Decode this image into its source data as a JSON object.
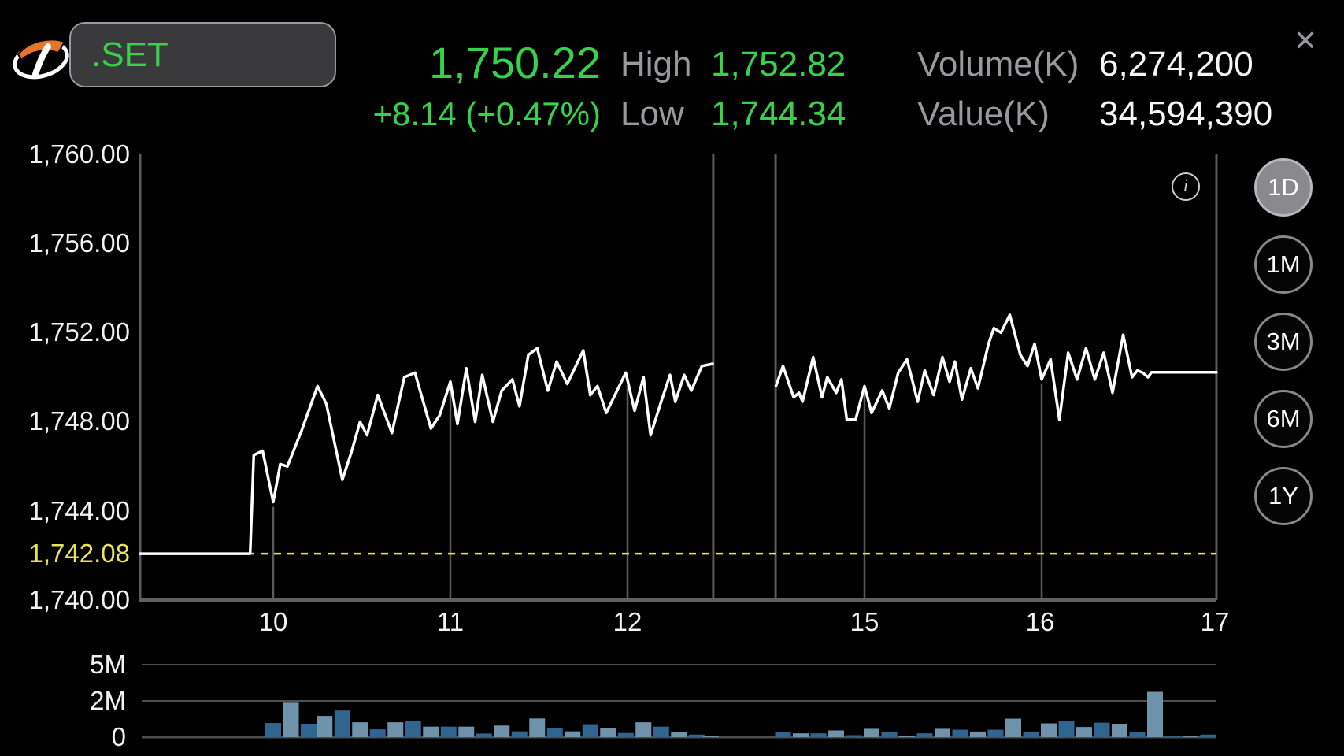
{
  "header": {
    "symbol": ".SET",
    "price": "1,750.22",
    "change": "+8.14 (+0.47%)",
    "high_label": "High",
    "high_value": "1,752.82",
    "low_label": "Low",
    "low_value": "1,744.34",
    "volume_label": "Volume(K)",
    "volume_value": "6,274,200",
    "value_label": "Value(K)",
    "value_value": "34,594,390",
    "close_glyph": "✕"
  },
  "chart": {
    "y_ticks": [
      "1,760.00",
      "1,756.00",
      "1,752.00",
      "1,748.00",
      "1,744.00",
      "1,740.00"
    ],
    "prev_close_label": "1,742.08",
    "x_ticks": [
      "10",
      "11",
      "12",
      "15",
      "16",
      "17"
    ],
    "volume_ticks": [
      "5M",
      "2M",
      "0"
    ],
    "range_buttons": [
      {
        "label": "1D",
        "active": true
      },
      {
        "label": "1M",
        "active": false
      },
      {
        "label": "3M",
        "active": false
      },
      {
        "label": "6M",
        "active": false
      },
      {
        "label": "1Y",
        "active": false
      }
    ],
    "info_glyph": "i"
  },
  "colors": {
    "up_green": "#35d24a",
    "label_gray": "#98989d",
    "value_white": "#f5f5f7",
    "prev_close_yellow": "#e8e455",
    "grid_gray": "#5a5a5c",
    "volume_grid_gray": "#4d4d4f",
    "price_line": "#ffffff",
    "bar_dark": "#2f658e",
    "bar_light": "#6e93ab",
    "logo_orange": "#e8742c"
  },
  "chart_data": {
    "type": "line+bar",
    "title": ".SET intraday price with volume",
    "x_axis": {
      "unit": "hour_of_day",
      "ticks": [
        10,
        11,
        12,
        15,
        16,
        17
      ],
      "sessions": [
        [
          9.25,
          12.484
        ],
        [
          14.498,
          17.0
        ]
      ]
    },
    "y_axis": {
      "min": 1740,
      "max": 1760,
      "tick_step": 4
    },
    "prev_close": 1742.08,
    "high": 1752.82,
    "low": 1744.34,
    "last": 1750.22,
    "price_series": {
      "morning": [
        [
          9.25,
          1742.08
        ],
        [
          9.87,
          1742.08
        ],
        [
          9.89,
          1746.5
        ],
        [
          9.94,
          1746.7
        ],
        [
          10.0,
          1744.4
        ],
        [
          10.04,
          1746.1
        ],
        [
          10.08,
          1746.0
        ],
        [
          10.16,
          1747.6
        ],
        [
          10.25,
          1749.6
        ],
        [
          10.3,
          1748.8
        ],
        [
          10.39,
          1745.4
        ],
        [
          10.44,
          1746.6
        ],
        [
          10.49,
          1748.0
        ],
        [
          10.53,
          1747.4
        ],
        [
          10.59,
          1749.2
        ],
        [
          10.67,
          1747.5
        ],
        [
          10.74,
          1750.0
        ],
        [
          10.8,
          1750.2
        ],
        [
          10.89,
          1747.7
        ],
        [
          10.94,
          1748.3
        ],
        [
          11.0,
          1749.8
        ],
        [
          11.04,
          1747.9
        ],
        [
          11.09,
          1750.4
        ],
        [
          11.14,
          1748.0
        ],
        [
          11.18,
          1750.1
        ],
        [
          11.24,
          1748.0
        ],
        [
          11.29,
          1749.4
        ],
        [
          11.35,
          1749.9
        ],
        [
          11.39,
          1748.7
        ],
        [
          11.44,
          1751.0
        ],
        [
          11.49,
          1751.3
        ],
        [
          11.55,
          1749.4
        ],
        [
          11.6,
          1750.7
        ],
        [
          11.66,
          1749.7
        ],
        [
          11.75,
          1751.2
        ],
        [
          11.79,
          1749.2
        ],
        [
          11.83,
          1749.6
        ],
        [
          11.88,
          1748.4
        ],
        [
          11.99,
          1750.2
        ],
        [
          12.04,
          1748.5
        ],
        [
          12.09,
          1750.0
        ],
        [
          12.13,
          1747.4
        ],
        [
          12.19,
          1748.9
        ],
        [
          12.24,
          1750.1
        ],
        [
          12.27,
          1748.9
        ],
        [
          12.32,
          1750.1
        ],
        [
          12.36,
          1749.4
        ],
        [
          12.42,
          1750.5
        ],
        [
          12.48,
          1750.6
        ]
      ],
      "afternoon": [
        [
          14.5,
          1749.6
        ],
        [
          14.54,
          1750.5
        ],
        [
          14.6,
          1749.1
        ],
        [
          14.63,
          1749.3
        ],
        [
          14.65,
          1748.9
        ],
        [
          14.71,
          1750.9
        ],
        [
          14.76,
          1749.1
        ],
        [
          14.79,
          1750.0
        ],
        [
          14.84,
          1749.3
        ],
        [
          14.87,
          1749.9
        ],
        [
          14.9,
          1748.1
        ],
        [
          14.95,
          1748.1
        ],
        [
          15.0,
          1749.6
        ],
        [
          15.04,
          1748.4
        ],
        [
          15.1,
          1749.4
        ],
        [
          15.14,
          1748.6
        ],
        [
          15.19,
          1750.2
        ],
        [
          15.24,
          1750.8
        ],
        [
          15.3,
          1748.9
        ],
        [
          15.34,
          1750.3
        ],
        [
          15.39,
          1749.2
        ],
        [
          15.44,
          1750.9
        ],
        [
          15.48,
          1749.8
        ],
        [
          15.51,
          1750.7
        ],
        [
          15.55,
          1749.0
        ],
        [
          15.6,
          1750.4
        ],
        [
          15.64,
          1749.5
        ],
        [
          15.7,
          1751.5
        ],
        [
          15.73,
          1752.2
        ],
        [
          15.77,
          1752.0
        ],
        [
          15.82,
          1752.8
        ],
        [
          15.88,
          1751.0
        ],
        [
          15.92,
          1750.5
        ],
        [
          15.96,
          1751.5
        ],
        [
          16.0,
          1749.9
        ],
        [
          16.05,
          1750.8
        ],
        [
          16.1,
          1748.1
        ],
        [
          16.15,
          1751.1
        ],
        [
          16.2,
          1749.9
        ],
        [
          16.25,
          1751.3
        ],
        [
          16.3,
          1749.9
        ],
        [
          16.35,
          1751.1
        ],
        [
          16.4,
          1749.3
        ],
        [
          16.46,
          1751.9
        ],
        [
          16.51,
          1750.0
        ],
        [
          16.54,
          1750.3
        ],
        [
          16.57,
          1750.2
        ],
        [
          16.6,
          1750.0
        ],
        [
          16.62,
          1750.22
        ],
        [
          16.99,
          1750.22
        ]
      ]
    },
    "volume_axis": {
      "tick_labels": [
        "5M",
        "2M",
        "0"
      ],
      "tick_values": [
        5000000,
        2000000,
        0
      ]
    },
    "volume_bars": [
      [
        10.0,
        0.78,
        "d"
      ],
      [
        10.1,
        1.9,
        "l"
      ],
      [
        10.2,
        0.73,
        "d"
      ],
      [
        10.29,
        1.17,
        "l"
      ],
      [
        10.39,
        1.47,
        "d"
      ],
      [
        10.49,
        0.82,
        "l"
      ],
      [
        10.59,
        0.43,
        "d"
      ],
      [
        10.69,
        0.82,
        "l"
      ],
      [
        10.79,
        0.9,
        "d"
      ],
      [
        10.89,
        0.58,
        "l"
      ],
      [
        10.99,
        0.58,
        "d"
      ],
      [
        11.09,
        0.58,
        "l"
      ],
      [
        11.19,
        0.2,
        "d"
      ],
      [
        11.29,
        0.64,
        "l"
      ],
      [
        11.39,
        0.32,
        "d"
      ],
      [
        11.49,
        1.03,
        "l"
      ],
      [
        11.59,
        0.5,
        "d"
      ],
      [
        11.69,
        0.32,
        "l"
      ],
      [
        11.79,
        0.67,
        "d"
      ],
      [
        11.89,
        0.5,
        "l"
      ],
      [
        11.99,
        0.23,
        "d"
      ],
      [
        12.09,
        0.82,
        "l"
      ],
      [
        12.19,
        0.58,
        "d"
      ],
      [
        12.29,
        0.3,
        "l"
      ],
      [
        12.39,
        0.14,
        "d"
      ],
      [
        12.47,
        0.06,
        "l"
      ],
      [
        14.54,
        0.26,
        "d"
      ],
      [
        14.64,
        0.21,
        "l"
      ],
      [
        14.74,
        0.21,
        "d"
      ],
      [
        14.84,
        0.37,
        "l"
      ],
      [
        14.94,
        0.11,
        "d"
      ],
      [
        15.04,
        0.46,
        "l"
      ],
      [
        15.14,
        0.31,
        "d"
      ],
      [
        15.24,
        0.06,
        "l"
      ],
      [
        15.34,
        0.21,
        "d"
      ],
      [
        15.44,
        0.46,
        "l"
      ],
      [
        15.54,
        0.41,
        "d"
      ],
      [
        15.64,
        0.31,
        "l"
      ],
      [
        15.74,
        0.41,
        "d"
      ],
      [
        15.84,
        1.02,
        "l"
      ],
      [
        15.94,
        0.31,
        "d"
      ],
      [
        16.04,
        0.76,
        "l"
      ],
      [
        16.14,
        0.87,
        "d"
      ],
      [
        16.24,
        0.56,
        "l"
      ],
      [
        16.34,
        0.8,
        "d"
      ],
      [
        16.44,
        0.72,
        "l"
      ],
      [
        16.54,
        0.3,
        "d"
      ],
      [
        16.64,
        2.75,
        "l"
      ],
      [
        16.74,
        0.05,
        "d"
      ],
      [
        16.84,
        0.04,
        "l"
      ],
      [
        16.94,
        0.14,
        "d"
      ]
    ],
    "volume_bar_unit": "millions"
  }
}
